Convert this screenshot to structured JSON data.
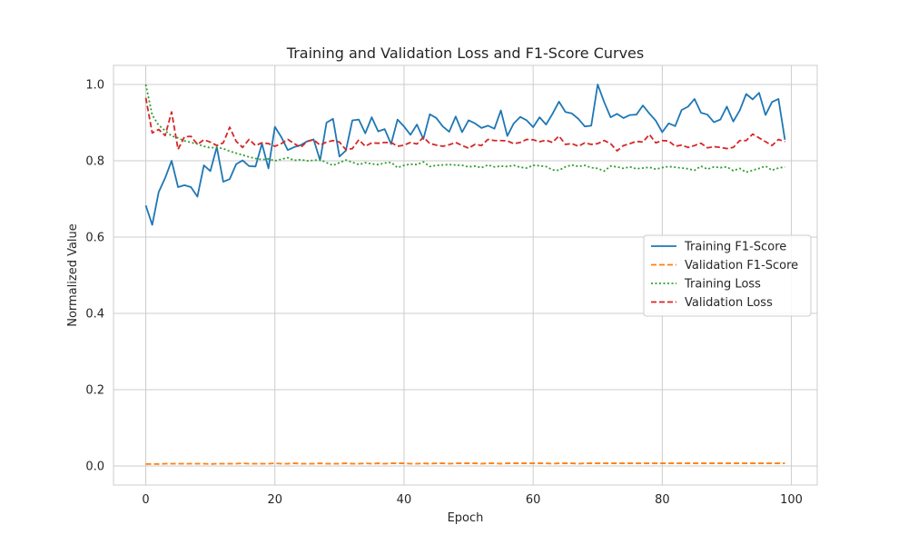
{
  "chart_data": {
    "type": "line",
    "title": "Training and Validation Loss and F1-Score Curves",
    "xlabel": "Epoch",
    "ylabel": "Normalized Value",
    "xlim": [
      -5,
      104
    ],
    "ylim": [
      -0.05,
      1.05
    ],
    "xticks": [
      0,
      20,
      40,
      60,
      80,
      100
    ],
    "yticks": [
      0.0,
      0.2,
      0.4,
      0.6,
      0.8,
      1.0
    ],
    "xtick_labels": [
      "0",
      "20",
      "40",
      "60",
      "80",
      "100"
    ],
    "ytick_labels": [
      "0.0",
      "0.2",
      "0.4",
      "0.6",
      "0.8",
      "1.0"
    ],
    "grid": true,
    "legend_position": "center-right",
    "x": [
      0,
      1,
      2,
      3,
      4,
      5,
      6,
      7,
      8,
      9,
      10,
      11,
      12,
      13,
      14,
      15,
      16,
      17,
      18,
      19,
      20,
      21,
      22,
      23,
      24,
      25,
      26,
      27,
      28,
      29,
      30,
      31,
      32,
      33,
      34,
      35,
      36,
      37,
      38,
      39,
      40,
      41,
      42,
      43,
      44,
      45,
      46,
      47,
      48,
      49,
      50,
      51,
      52,
      53,
      54,
      55,
      56,
      57,
      58,
      59,
      60,
      61,
      62,
      63,
      64,
      65,
      66,
      67,
      68,
      69,
      70,
      71,
      72,
      73,
      74,
      75,
      76,
      77,
      78,
      79,
      80,
      81,
      82,
      83,
      84,
      85,
      86,
      87,
      88,
      89,
      90,
      91,
      92,
      93,
      94,
      95,
      96,
      97,
      98,
      99
    ],
    "series": [
      {
        "name": "Training F1-Score",
        "color": "#1f77b4",
        "style": "solid",
        "values": [
          0.683,
          0.632,
          0.718,
          0.755,
          0.8,
          0.731,
          0.736,
          0.731,
          0.706,
          0.788,
          0.773,
          0.836,
          0.745,
          0.752,
          0.791,
          0.801,
          0.786,
          0.785,
          0.845,
          0.78,
          0.889,
          0.862,
          0.828,
          0.836,
          0.841,
          0.851,
          0.856,
          0.801,
          0.9,
          0.91,
          0.811,
          0.827,
          0.906,
          0.908,
          0.872,
          0.914,
          0.877,
          0.883,
          0.844,
          0.908,
          0.89,
          0.868,
          0.895,
          0.857,
          0.922,
          0.912,
          0.89,
          0.876,
          0.916,
          0.875,
          0.906,
          0.898,
          0.886,
          0.892,
          0.884,
          0.932,
          0.865,
          0.898,
          0.915,
          0.906,
          0.888,
          0.914,
          0.895,
          0.923,
          0.955,
          0.928,
          0.924,
          0.91,
          0.89,
          0.892,
          1.0,
          0.954,
          0.914,
          0.923,
          0.912,
          0.92,
          0.921,
          0.945,
          0.924,
          0.905,
          0.875,
          0.898,
          0.891,
          0.933,
          0.942,
          0.962,
          0.926,
          0.921,
          0.901,
          0.908,
          0.942,
          0.903,
          0.932,
          0.975,
          0.961,
          0.978,
          0.92,
          0.954,
          0.962,
          0.855
        ]
      },
      {
        "name": "Validation F1-Score",
        "color": "#ff7f0e",
        "style": "dashed",
        "values": [
          0.005,
          0.005,
          0.005,
          0.006,
          0.006,
          0.006,
          0.006,
          0.006,
          0.006,
          0.006,
          0.005,
          0.006,
          0.006,
          0.006,
          0.006,
          0.007,
          0.006,
          0.006,
          0.006,
          0.006,
          0.007,
          0.006,
          0.006,
          0.007,
          0.006,
          0.006,
          0.006,
          0.007,
          0.006,
          0.006,
          0.006,
          0.007,
          0.006,
          0.006,
          0.007,
          0.006,
          0.007,
          0.006,
          0.007,
          0.007,
          0.007,
          0.006,
          0.006,
          0.007,
          0.006,
          0.007,
          0.007,
          0.006,
          0.007,
          0.007,
          0.007,
          0.007,
          0.006,
          0.007,
          0.007,
          0.006,
          0.007,
          0.007,
          0.007,
          0.007,
          0.007,
          0.007,
          0.007,
          0.006,
          0.007,
          0.007,
          0.007,
          0.006,
          0.007,
          0.007,
          0.007,
          0.007,
          0.007,
          0.007,
          0.007,
          0.007,
          0.007,
          0.007,
          0.007,
          0.007,
          0.007,
          0.007,
          0.007,
          0.007,
          0.007,
          0.007,
          0.007,
          0.007,
          0.007,
          0.007,
          0.007,
          0.007,
          0.007,
          0.007,
          0.007,
          0.007,
          0.007,
          0.007,
          0.007,
          0.007
        ]
      },
      {
        "name": "Training Loss",
        "color": "#2ca02c",
        "style": "dotted",
        "values": [
          1.0,
          0.92,
          0.893,
          0.879,
          0.865,
          0.86,
          0.852,
          0.848,
          0.844,
          0.838,
          0.834,
          0.835,
          0.832,
          0.825,
          0.82,
          0.815,
          0.81,
          0.806,
          0.803,
          0.805,
          0.8,
          0.804,
          0.808,
          0.801,
          0.803,
          0.8,
          0.801,
          0.803,
          0.795,
          0.788,
          0.795,
          0.802,
          0.796,
          0.79,
          0.795,
          0.792,
          0.79,
          0.794,
          0.796,
          0.782,
          0.788,
          0.791,
          0.79,
          0.797,
          0.785,
          0.788,
          0.789,
          0.79,
          0.789,
          0.788,
          0.784,
          0.786,
          0.782,
          0.789,
          0.784,
          0.786,
          0.785,
          0.788,
          0.783,
          0.781,
          0.788,
          0.787,
          0.785,
          0.776,
          0.775,
          0.784,
          0.789,
          0.785,
          0.788,
          0.782,
          0.78,
          0.773,
          0.786,
          0.784,
          0.78,
          0.784,
          0.779,
          0.781,
          0.783,
          0.778,
          0.782,
          0.785,
          0.783,
          0.781,
          0.779,
          0.775,
          0.786,
          0.778,
          0.784,
          0.782,
          0.784,
          0.774,
          0.78,
          0.77,
          0.775,
          0.78,
          0.786,
          0.775,
          0.781,
          0.784
        ]
      },
      {
        "name": "Validation Loss",
        "color": "#d62728",
        "style": "dashed",
        "values": [
          0.965,
          0.873,
          0.882,
          0.866,
          0.928,
          0.83,
          0.863,
          0.864,
          0.843,
          0.855,
          0.849,
          0.84,
          0.847,
          0.888,
          0.851,
          0.835,
          0.856,
          0.84,
          0.847,
          0.845,
          0.838,
          0.845,
          0.856,
          0.845,
          0.835,
          0.851,
          0.855,
          0.841,
          0.849,
          0.853,
          0.849,
          0.829,
          0.832,
          0.855,
          0.838,
          0.847,
          0.846,
          0.848,
          0.848,
          0.838,
          0.841,
          0.848,
          0.844,
          0.862,
          0.845,
          0.841,
          0.838,
          0.842,
          0.848,
          0.84,
          0.833,
          0.843,
          0.84,
          0.856,
          0.853,
          0.853,
          0.852,
          0.845,
          0.848,
          0.856,
          0.855,
          0.85,
          0.854,
          0.848,
          0.865,
          0.843,
          0.845,
          0.838,
          0.847,
          0.843,
          0.845,
          0.853,
          0.845,
          0.826,
          0.84,
          0.845,
          0.851,
          0.849,
          0.869,
          0.847,
          0.853,
          0.852,
          0.838,
          0.841,
          0.835,
          0.84,
          0.846,
          0.834,
          0.837,
          0.835,
          0.832,
          0.835,
          0.853,
          0.853,
          0.87,
          0.86,
          0.85,
          0.84,
          0.856,
          0.85
        ]
      }
    ]
  }
}
